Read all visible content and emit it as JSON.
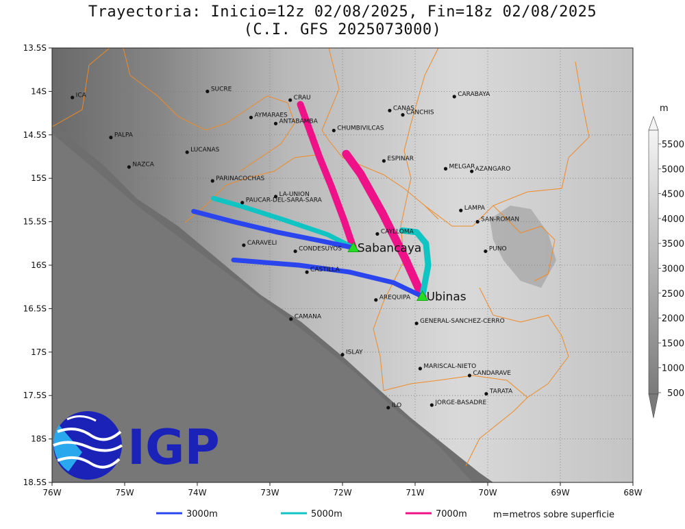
{
  "title": "Trayectoria: Inicio=12z 02/08/2025, Fin=18z 02/08/2025",
  "subtitle": "(C.I. GFS 2025073000)",
  "map": {
    "lon_range": [
      -76,
      -68
    ],
    "lat_range": [
      -18.5,
      -13.5
    ],
    "lon_ticks": [
      {
        "v": -76,
        "label": "76W"
      },
      {
        "v": -75,
        "label": "75W"
      },
      {
        "v": -74,
        "label": "74W"
      },
      {
        "v": -73,
        "label": "73W"
      },
      {
        "v": -72,
        "label": "72W"
      },
      {
        "v": -71,
        "label": "71W"
      },
      {
        "v": -70,
        "label": "70W"
      },
      {
        "v": -69,
        "label": "69W"
      },
      {
        "v": -68,
        "label": "68W"
      }
    ],
    "lat_ticks": [
      {
        "v": -13.5,
        "label": "13.5S"
      },
      {
        "v": -14,
        "label": "14S"
      },
      {
        "v": -14.5,
        "label": "14.5S"
      },
      {
        "v": -15,
        "label": "15S"
      },
      {
        "v": -15.5,
        "label": "15.5S"
      },
      {
        "v": -16,
        "label": "16S"
      },
      {
        "v": -16.5,
        "label": "16.5S"
      },
      {
        "v": -17,
        "label": "17S"
      },
      {
        "v": -17.5,
        "label": "17.5S"
      },
      {
        "v": -18,
        "label": "18S"
      },
      {
        "v": -18.5,
        "label": "18.5S"
      }
    ],
    "grid": "dotted",
    "border_color": "#f08a24"
  },
  "places": [
    {
      "name": "ICA",
      "lon": -75.72,
      "lat": -14.07
    },
    {
      "name": "SUCRE",
      "lon": -73.86,
      "lat": -14.0
    },
    {
      "name": "CRAU",
      "lon": -72.72,
      "lat": -14.1
    },
    {
      "name": "CARABAYA",
      "lon": -70.46,
      "lat": -14.06
    },
    {
      "name": "CANAS",
      "lon": -71.35,
      "lat": -14.22
    },
    {
      "name": "CANCHIS",
      "lon": -71.17,
      "lat": -14.27
    },
    {
      "name": "AYMARAES",
      "lon": -73.26,
      "lat": -14.3
    },
    {
      "name": "ANTABAMBA",
      "lon": -72.92,
      "lat": -14.37
    },
    {
      "name": "CHUMBIVILCAS",
      "lon": -72.12,
      "lat": -14.45
    },
    {
      "name": "PALPA",
      "lon": -75.19,
      "lat": -14.53
    },
    {
      "name": "LUCANAS",
      "lon": -74.14,
      "lat": -14.7
    },
    {
      "name": "ESPINAR",
      "lon": -71.43,
      "lat": -14.8
    },
    {
      "name": "NAZCA",
      "lon": -74.94,
      "lat": -14.87
    },
    {
      "name": "MELGAR",
      "lon": -70.58,
      "lat": -14.89
    },
    {
      "name": "AZANGARO",
      "lon": -70.22,
      "lat": -14.92
    },
    {
      "name": "PARINACOCHAS",
      "lon": -73.79,
      "lat": -15.03
    },
    {
      "name": "LA-UNION",
      "lon": -72.92,
      "lat": -15.21
    },
    {
      "name": "PAUCAR-DEL-SARA-SARA",
      "lon": -73.38,
      "lat": -15.28
    },
    {
      "name": "LAMPA",
      "lon": -70.37,
      "lat": -15.37
    },
    {
      "name": "SAN-ROMAN",
      "lon": -70.14,
      "lat": -15.5
    },
    {
      "name": "CAYLLOMA",
      "lon": -71.52,
      "lat": -15.64
    },
    {
      "name": "CARAVELI",
      "lon": -73.36,
      "lat": -15.77
    },
    {
      "name": "CONDESUYOS",
      "lon": -72.65,
      "lat": -15.84
    },
    {
      "name": "PUNO",
      "lon": -70.03,
      "lat": -15.84
    },
    {
      "name": "CASTILLA",
      "lon": -72.49,
      "lat": -16.08
    },
    {
      "name": "AREQUIPA",
      "lon": -71.54,
      "lat": -16.4
    },
    {
      "name": "CAMANA",
      "lon": -72.71,
      "lat": -16.62
    },
    {
      "name": "GENERAL-SANCHEZ-CERRO",
      "lon": -70.98,
      "lat": -16.67
    },
    {
      "name": "ISLAY",
      "lon": -72.0,
      "lat": -17.03
    },
    {
      "name": "MARISCAL-NIETO",
      "lon": -70.93,
      "lat": -17.19
    },
    {
      "name": "CANDARAVE",
      "lon": -70.25,
      "lat": -17.27
    },
    {
      "name": "TARATA",
      "lon": -70.02,
      "lat": -17.48
    },
    {
      "name": "ILO",
      "lon": -71.37,
      "lat": -17.64
    },
    {
      "name": "JORGE-BASADRE",
      "lon": -70.77,
      "lat": -17.61
    }
  ],
  "volcanoes": [
    {
      "name": "Sabancaya",
      "lon": -71.85,
      "lat": -15.8
    },
    {
      "name": "Ubinas",
      "lon": -70.9,
      "lat": -16.36
    }
  ],
  "trajectories": [
    {
      "level": "7000m",
      "color": "#ee1188",
      "width": 10,
      "points": [
        [
          -71.85,
          -15.8
        ],
        [
          -71.98,
          -15.48
        ],
        [
          -72.15,
          -15.1
        ],
        [
          -72.32,
          -14.75
        ],
        [
          -72.45,
          -14.45
        ],
        [
          -72.58,
          -14.15
        ]
      ]
    },
    {
      "level": "7000m",
      "color": "#ee1188",
      "width": 12,
      "points": [
        [
          -70.9,
          -16.36
        ],
        [
          -71.15,
          -15.9
        ],
        [
          -71.45,
          -15.4
        ],
        [
          -71.75,
          -14.95
        ],
        [
          -71.95,
          -14.72
        ]
      ]
    },
    {
      "level": "5000m",
      "color": "#11c4c4",
      "width": 7,
      "points": [
        [
          -71.85,
          -15.8
        ],
        [
          -72.2,
          -15.65
        ],
        [
          -72.8,
          -15.48
        ],
        [
          -73.4,
          -15.32
        ],
        [
          -73.78,
          -15.23
        ]
      ]
    },
    {
      "level": "5000m",
      "color": "#11c4c4",
      "width": 9,
      "points": [
        [
          -70.9,
          -16.36
        ],
        [
          -70.82,
          -16.0
        ],
        [
          -70.85,
          -15.75
        ],
        [
          -70.98,
          -15.62
        ],
        [
          -71.18,
          -15.6
        ]
      ]
    },
    {
      "level": "3000m",
      "color": "#2a44ee",
      "width": 7,
      "points": [
        [
          -71.85,
          -15.8
        ],
        [
          -72.3,
          -15.72
        ],
        [
          -72.9,
          -15.62
        ],
        [
          -73.5,
          -15.5
        ],
        [
          -74.05,
          -15.38
        ]
      ]
    },
    {
      "level": "3000m",
      "color": "#2a44ee",
      "width": 7,
      "points": [
        [
          -70.9,
          -16.36
        ],
        [
          -71.3,
          -16.2
        ],
        [
          -71.9,
          -16.08
        ],
        [
          -72.6,
          -16.0
        ],
        [
          -73.5,
          -15.94
        ]
      ]
    }
  ],
  "colorbar": {
    "unit": "m",
    "labels": [
      "5500",
      "5000",
      "4500",
      "4000",
      "3500",
      "3000",
      "2500",
      "2000",
      "1500",
      "1000",
      "500"
    ]
  },
  "legend": [
    {
      "label": "3000m",
      "color": "#2a44ee"
    },
    {
      "label": "5000m",
      "color": "#11c4c4"
    },
    {
      "label": "7000m",
      "color": "#ee1188"
    }
  ],
  "legend_note": "m=metros sobre superficie",
  "logo_text": "IGP"
}
